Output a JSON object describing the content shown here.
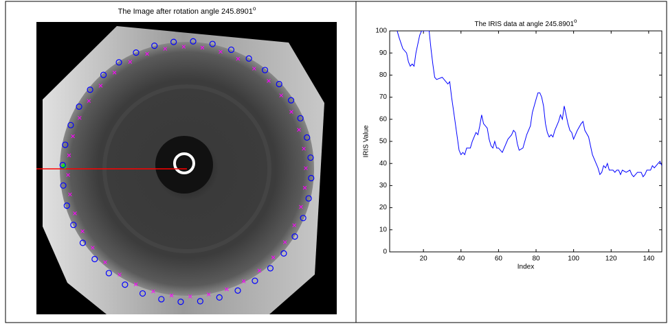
{
  "chart_data": [
    {
      "type": "image",
      "title": "The Image after rotation angle 245.8901",
      "title_sup": "o"
    },
    {
      "type": "line",
      "title": "The IRIS data at angle 245.8901",
      "title_sup": "o",
      "x_label": "Index",
      "y_label": "IRIS Value",
      "color": "#0000ff",
      "xlim": [
        2,
        147
      ],
      "xticks": [
        20,
        40,
        60,
        80,
        100,
        120,
        140
      ],
      "ylim": [
        0,
        100
      ],
      "yticks": [
        0,
        10,
        20,
        30,
        40,
        50,
        60,
        70,
        80,
        90,
        100
      ],
      "x": [
        6,
        7,
        9,
        11,
        12,
        13,
        14,
        15,
        16,
        18,
        19,
        20,
        22,
        23,
        24,
        25,
        26,
        27,
        30,
        32,
        33,
        34,
        35,
        36,
        37,
        38,
        39,
        40,
        41,
        42,
        43,
        45,
        46,
        48,
        49,
        50,
        51,
        52,
        54,
        55,
        56,
        57,
        58,
        59,
        60,
        62,
        63,
        65,
        67,
        68,
        69,
        70,
        71,
        73,
        75,
        77,
        78,
        80,
        81,
        82,
        83,
        84,
        85,
        86,
        87,
        88,
        89,
        90,
        92,
        93,
        94,
        95,
        96,
        97,
        98,
        99,
        100,
        102,
        104,
        105,
        106,
        108,
        110,
        112,
        113,
        114,
        115,
        116,
        117,
        118,
        119,
        121,
        122,
        123,
        124,
        125,
        126,
        128,
        130,
        131,
        132,
        134,
        136,
        137,
        138,
        139,
        141,
        142,
        143,
        145,
        146,
        147
      ],
      "values": [
        100,
        97,
        92,
        90,
        86,
        84,
        85,
        84,
        90,
        98,
        100,
        100,
        100,
        100,
        92,
        85,
        79,
        78,
        79,
        77,
        76,
        77,
        70,
        64,
        58,
        52,
        46,
        44,
        45,
        44,
        47,
        47,
        50,
        54,
        53,
        57,
        62,
        58,
        56,
        51,
        48,
        47,
        50,
        47,
        47,
        45,
        47,
        51,
        53,
        55,
        54,
        49,
        46,
        47,
        53,
        57,
        63,
        69,
        72,
        72,
        70,
        66,
        58,
        54,
        52,
        53,
        52,
        55,
        59,
        62,
        60,
        66,
        62,
        58,
        55,
        54,
        51,
        55,
        58,
        59,
        55,
        52,
        44,
        40,
        38,
        35,
        36,
        39,
        38,
        40,
        37,
        37,
        36,
        37,
        37,
        35,
        37,
        36,
        37,
        35,
        34,
        36,
        36,
        34,
        35,
        37,
        37,
        39,
        38,
        40,
        41,
        39
      ]
    }
  ]
}
